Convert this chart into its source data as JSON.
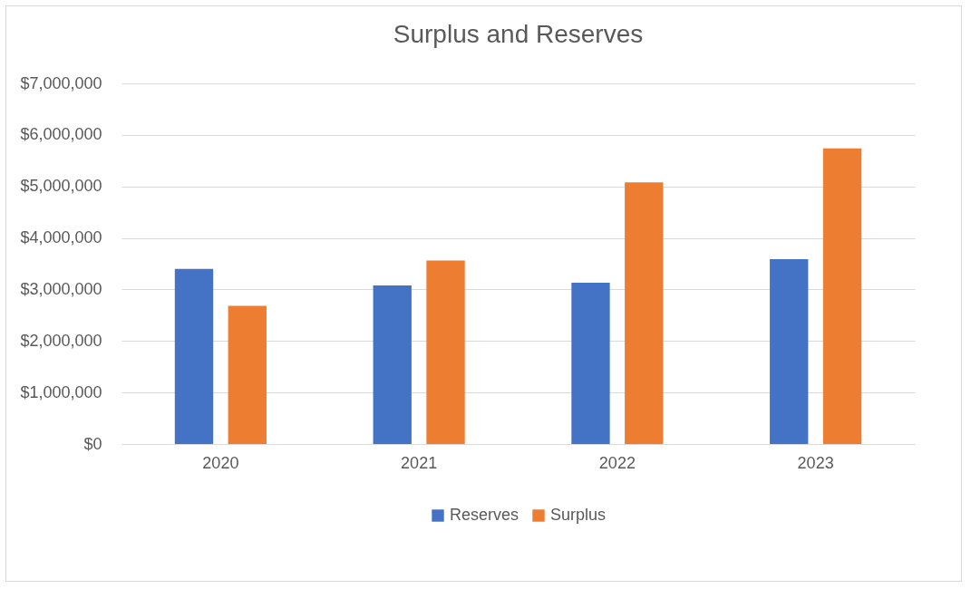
{
  "chart_data": {
    "type": "bar",
    "title": "Surplus and Reserves",
    "categories": [
      "2020",
      "2021",
      "2022",
      "2023"
    ],
    "series": [
      {
        "name": "Reserves",
        "color": "#4472c4",
        "values": [
          3400000,
          3080000,
          3130000,
          3590000
        ]
      },
      {
        "name": "Surplus",
        "color": "#ed7d31",
        "values": [
          2680000,
          3560000,
          5080000,
          5740000
        ]
      }
    ],
    "ylim": [
      0,
      7000000
    ],
    "yticks": [
      {
        "value": 0,
        "label": "$0"
      },
      {
        "value": 1000000,
        "label": "$1,000,000"
      },
      {
        "value": 2000000,
        "label": "$2,000,000"
      },
      {
        "value": 3000000,
        "label": "$3,000,000"
      },
      {
        "value": 4000000,
        "label": "$4,000,000"
      },
      {
        "value": 5000000,
        "label": "$5,000,000"
      },
      {
        "value": 6000000,
        "label": "$6,000,000"
      },
      {
        "value": 7000000,
        "label": "$7,000,000"
      }
    ],
    "grid": "y",
    "legend": "bottom"
  }
}
